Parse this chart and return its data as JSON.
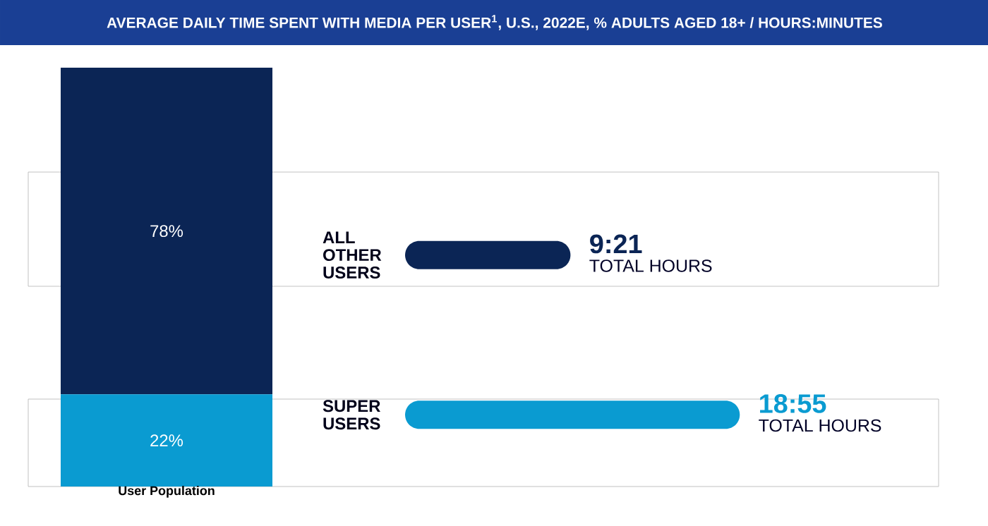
{
  "chart_data": [
    {
      "type": "bar",
      "title": "AVERAGE DAILY TIME SPENT WITH MEDIA PER USER$^{1}$, U.S., 2022E, % ADULTS AGED 18+ / HOURS:MINUTES",
      "stacked": true,
      "categories": [
        null
      ],
      "xlabel": "User Population",
      "series": [
        {
          "color": "#0a9bd1",
          "values": [
            22
          ],
          "value_labels": [
            "22%"
          ]
        },
        {
          "color": "#0b2555",
          "values": [
            78
          ],
          "value_labels": [
            "78%"
          ]
        }
      ]
    },
    {
      "type": "bar",
      "orientation": "horizontal",
      "categories": [
        "ALL OTHER USERS",
        "SUPER USERS"
      ],
      "values": [
        9.35,
        18.92
      ],
      "colors": [
        "#0b2555",
        "#0a9bd1"
      ],
      "value_labels": [
        "9:21",
        "18:55"
      ],
      "annotations": [
        "TOTAL HOURS",
        "TOTAL HOURS"
      ]
    }
  ]
}
